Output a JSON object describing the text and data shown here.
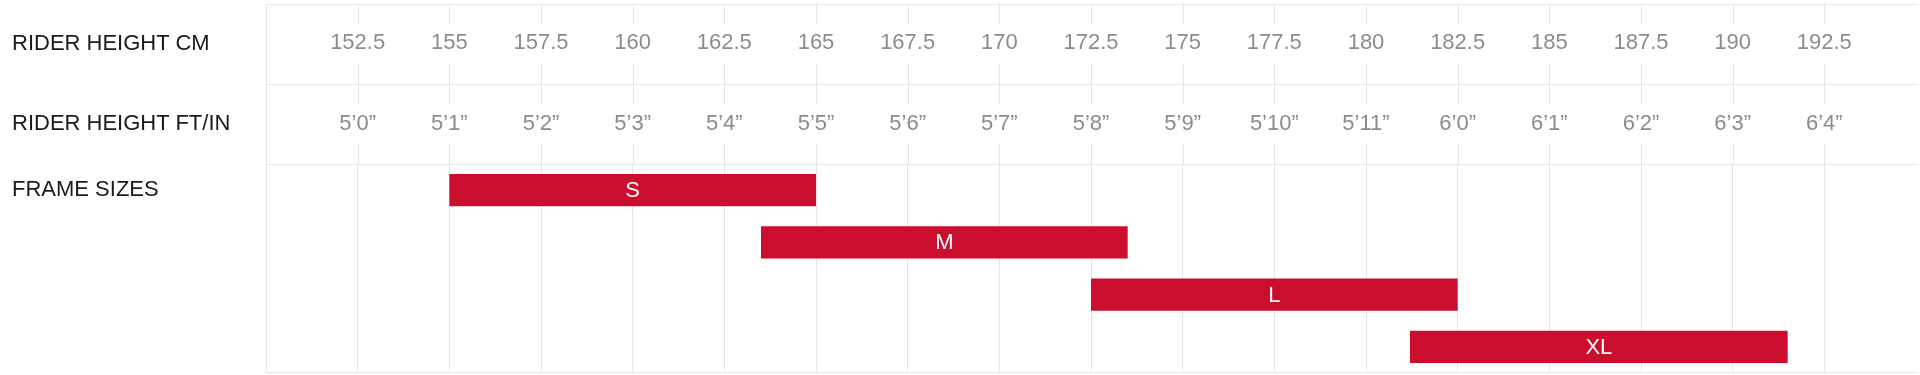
{
  "chart_data": {
    "type": "bar",
    "orientation": "horizontal",
    "xlabel": "RIDER HEIGHT CM",
    "x2label": "RIDER HEIGHT FT/IN",
    "ylabel": "FRAME SIZES",
    "categories": [
      "S",
      "M",
      "L",
      "XL"
    ],
    "base": [
      155,
      163.5,
      172.5,
      181.2
    ],
    "values": [
      10,
      10,
      10,
      10.3
    ],
    "color": "#cc0e2e",
    "xlim": [
      150,
      195
    ],
    "xticks": [
      152.5,
      155,
      157.5,
      160,
      162.5,
      165,
      167.5,
      170,
      172.5,
      175,
      177.5,
      180,
      182.5,
      185,
      187.5,
      190,
      192.5
    ],
    "annotations": [
      "5’0”",
      "5’1”",
      "5’2”",
      "5’3”",
      "5’4”",
      "5’5”",
      "5’6”",
      "5’7”",
      "5’8”",
      "5’9”",
      "5’10”",
      "5’11”",
      "6’0”",
      "6’1”",
      "6’2”",
      "6’3”",
      "6’4”"
    ],
    "grid": "x"
  }
}
